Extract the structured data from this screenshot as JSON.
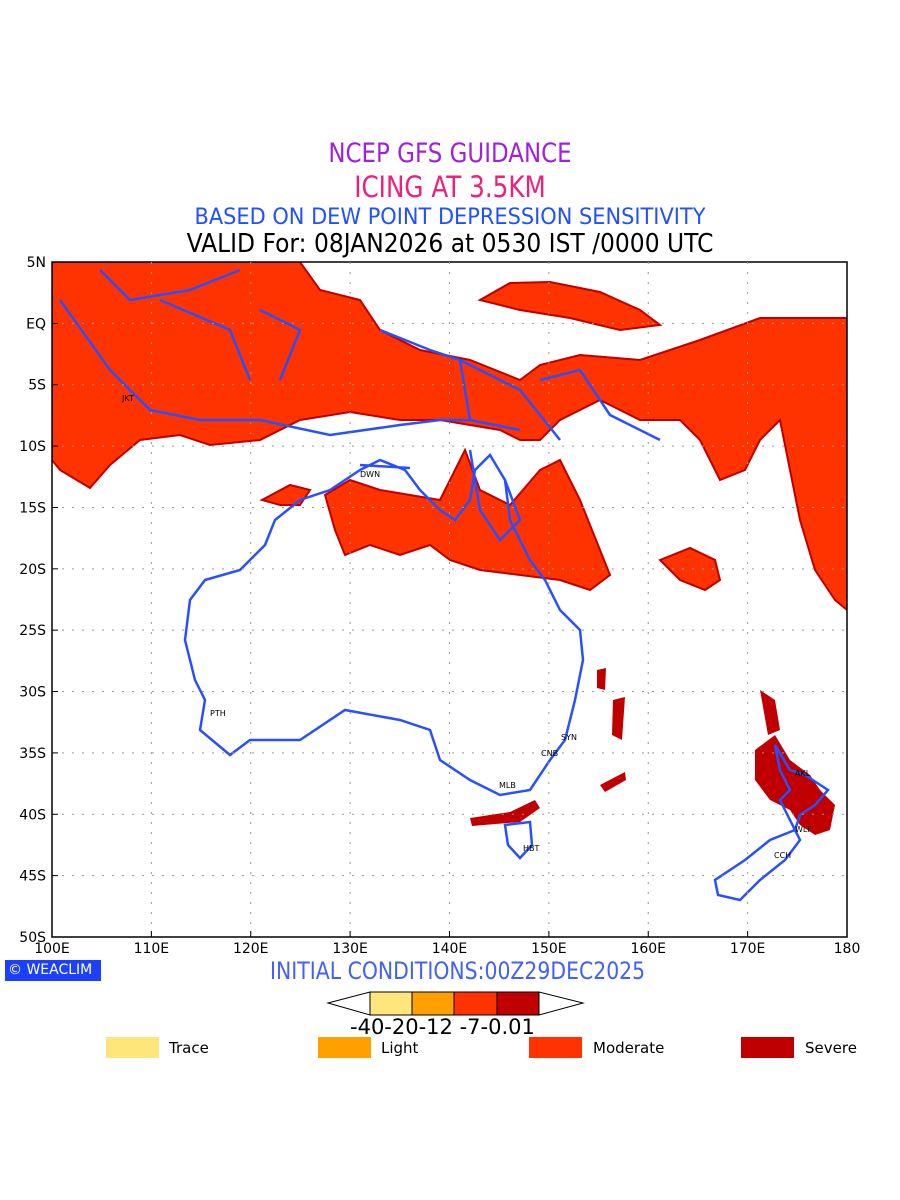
{
  "titles": {
    "line1": "NCEP GFS GUIDANCE",
    "line2": "ICING AT 3.5KM",
    "line3": "BASED ON DEW POINT DEPRESSION SENSITIVITY",
    "line4": "VALID For: 08JAN2026 at 0530 IST /0000 UTC"
  },
  "axes": {
    "lat": [
      "5N",
      "EQ",
      "5S",
      "10S",
      "15S",
      "20S",
      "25S",
      "30S",
      "35S",
      "40S",
      "45S",
      "50S"
    ],
    "lon": [
      "100E",
      "110E",
      "120E",
      "130E",
      "140E",
      "150E",
      "160E",
      "170E",
      "180"
    ]
  },
  "cities": {
    "jkt": "JKT",
    "dwn": "DWN",
    "pth": "PTH",
    "syn": "SYN",
    "cnb": "CNB",
    "mlb": "MLB",
    "hbt": "HBT",
    "akl": "AKL",
    "wlt": "WLT",
    "cch": "CCH"
  },
  "logo": "WEACLIM",
  "initial_conditions": "INITIAL CONDITIONS:00Z29DEC2025",
  "colorbar": {
    "labels": "-40-20-12 -7-0.01",
    "colors": [
      "#ffe67a",
      "#ff9f00",
      "#ff3300",
      "#c00000"
    ]
  },
  "legend": [
    {
      "label": "Trace",
      "color": "#ffe67a"
    },
    {
      "label": "Light",
      "color": "#ff9f00"
    },
    {
      "label": "Moderate",
      "color": "#ff3300"
    },
    {
      "label": "Severe",
      "color": "#c00000"
    }
  ]
}
